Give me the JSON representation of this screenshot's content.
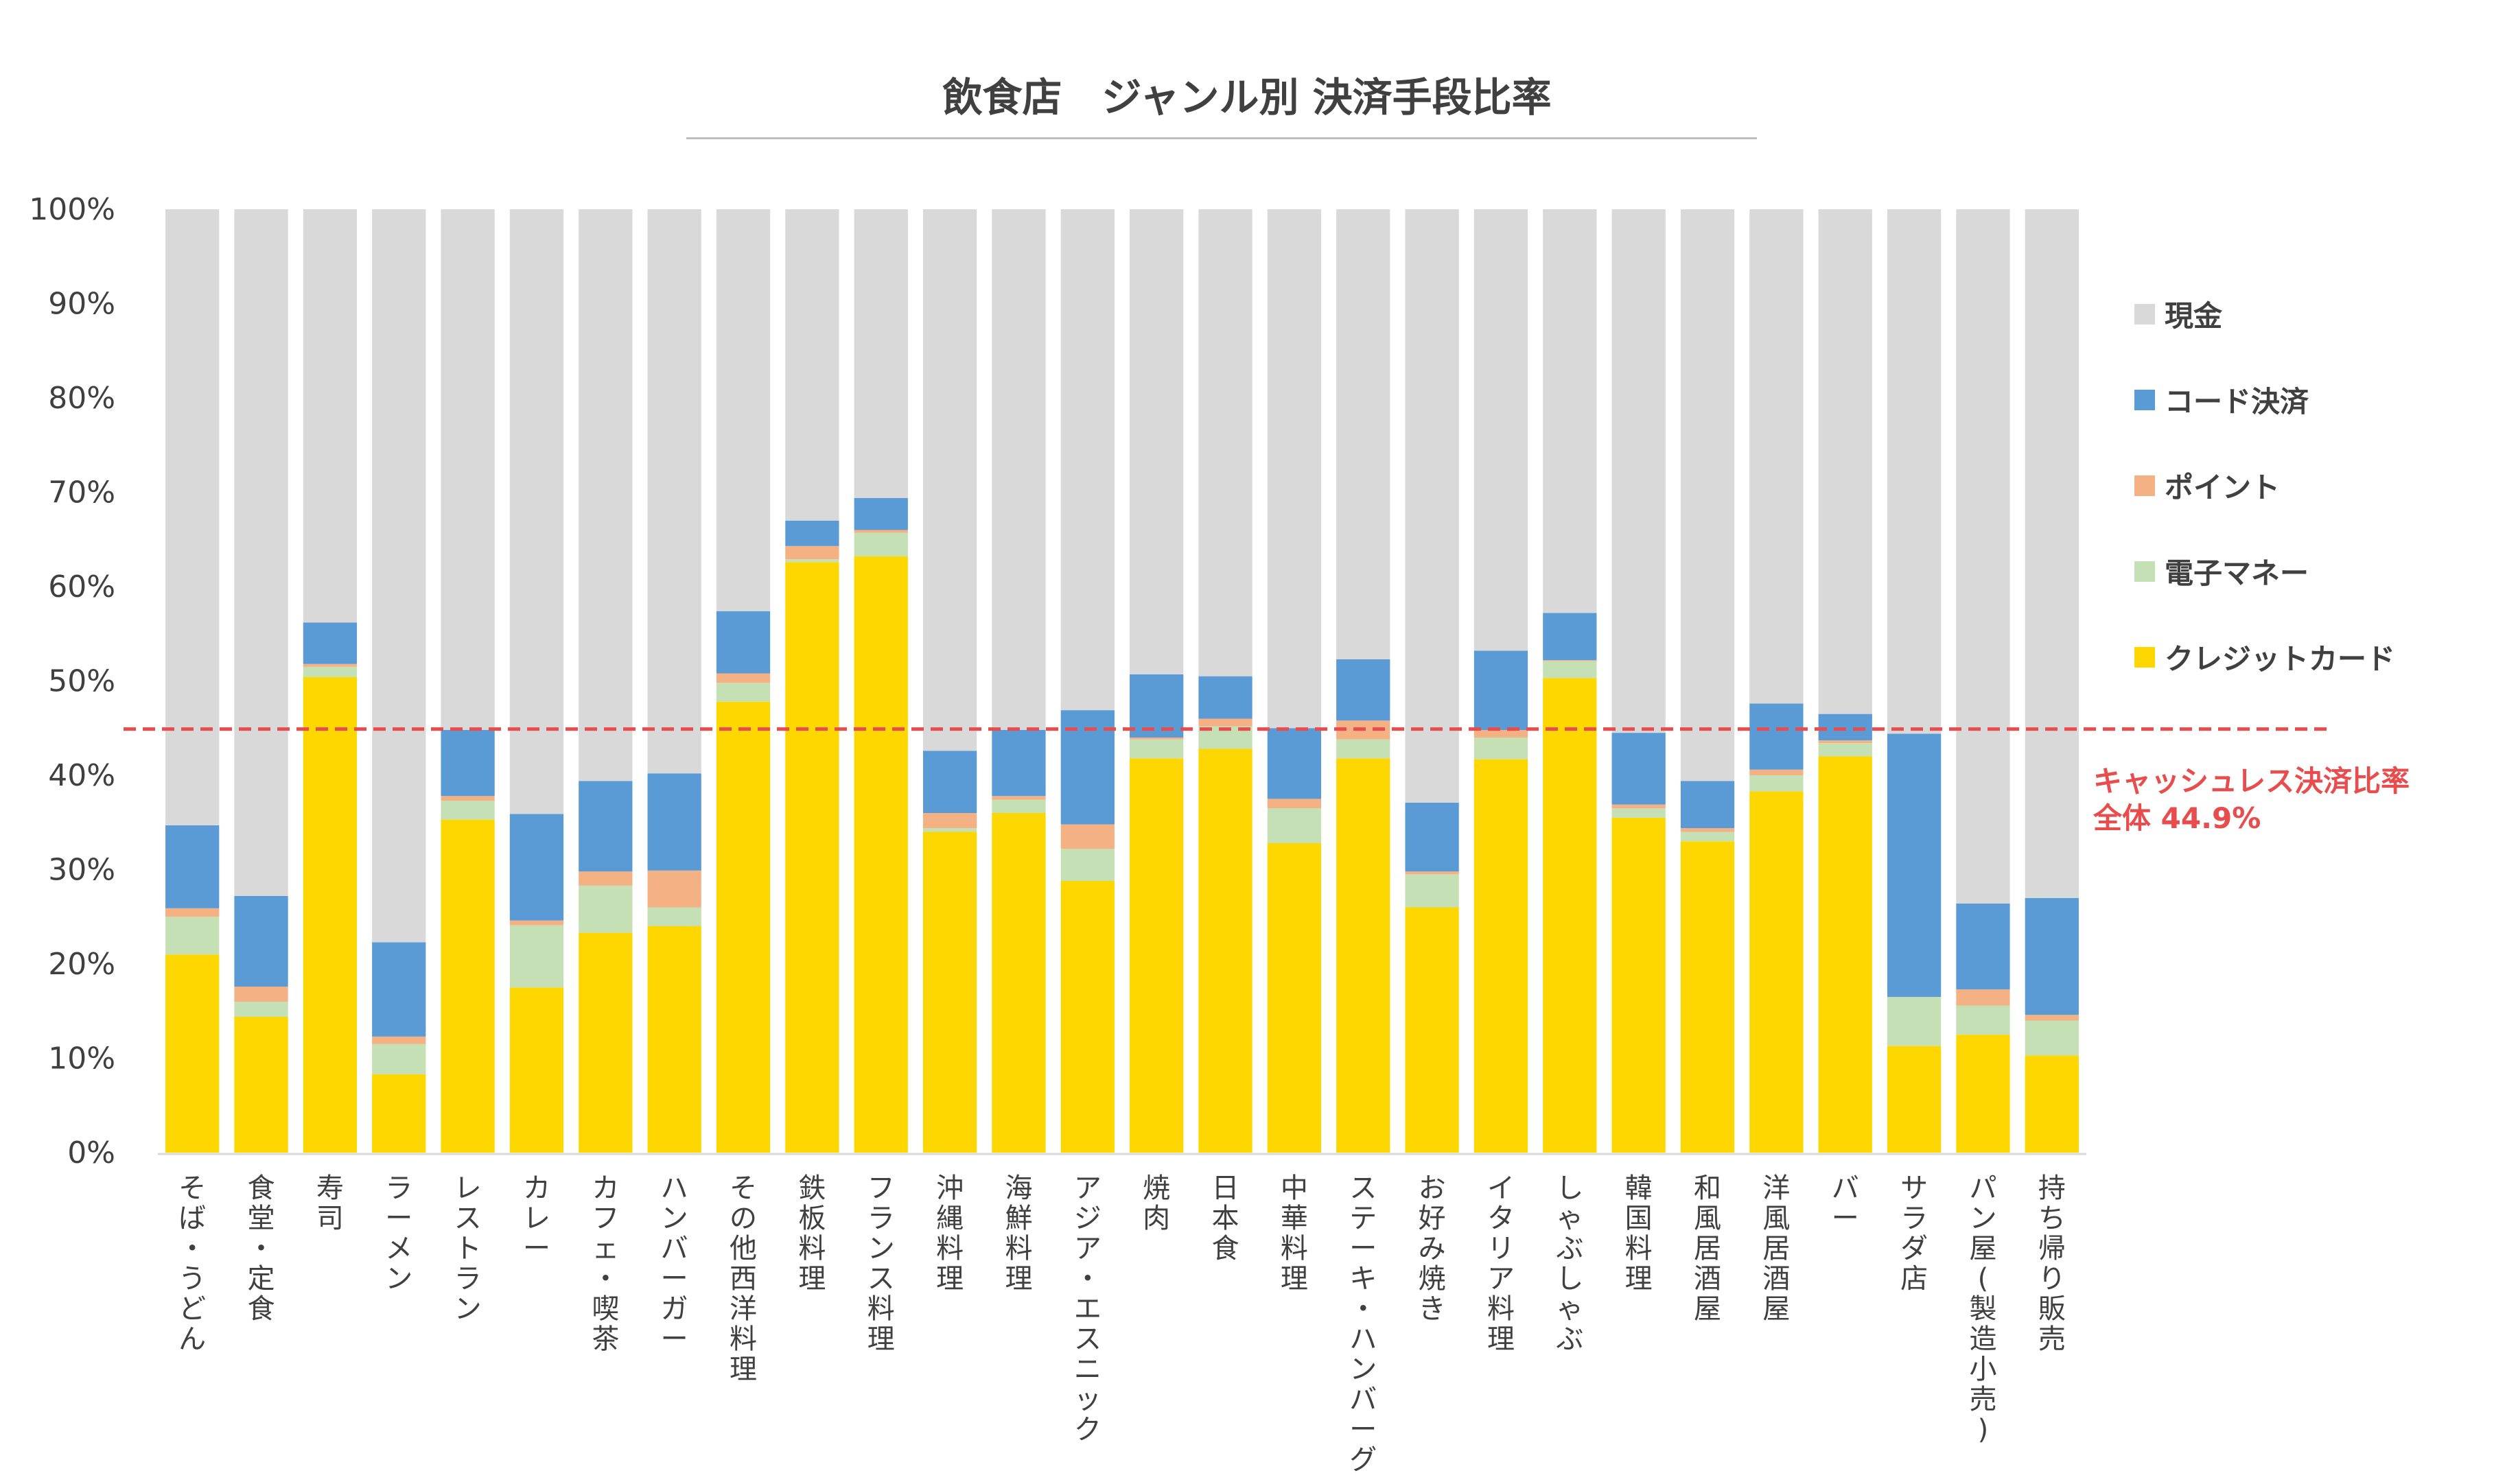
{
  "chart_data": {
    "type": "bar",
    "stacked": true,
    "title": "飲食店　ジャンル別 決済手段比率",
    "ylim": [
      0,
      100
    ],
    "yticks": [
      "0%",
      "10%",
      "20%",
      "30%",
      "40%",
      "50%",
      "60%",
      "70%",
      "80%",
      "90%",
      "100%"
    ],
    "categories": [
      "そば・うどん",
      "食堂・定食",
      "寿司",
      "ラーメン",
      "レストラン",
      "カレー",
      "カフェ・喫茶",
      "ハンバーガー",
      "その他西洋料理",
      "鉄板料理",
      "フランス料理",
      "沖縄料理",
      "海鮮料理",
      "アジア・エスニック",
      "焼肉",
      "日本食",
      "中華料理",
      "ステーキ・ハンバーグ",
      "お好み焼き",
      "イタリア料理",
      "しゃぶしゃぶ",
      "韓国料理",
      "和風居酒屋",
      "洋風居酒屋",
      "バー",
      "サラダ店",
      "パン屋(製造小売)",
      "持ち帰り販売"
    ],
    "series": [
      {
        "name": "クレジットカード",
        "color": "#ffd700",
        "values": [
          21,
          14.4,
          50.4,
          8.3,
          35.3,
          17.5,
          23.3,
          24.0,
          47.8,
          62.6,
          63.2,
          34.0,
          36.0,
          28.8,
          41.8,
          42.8,
          32.8,
          41.8,
          26.0,
          41.7,
          50.3,
          35.5,
          33.0,
          38.3,
          42.0,
          11.3,
          12.5,
          10.3
        ]
      },
      {
        "name": "電子マネー",
        "color": "#c5e0b4",
        "values": [
          4.0,
          1.6,
          1.1,
          3.2,
          2.0,
          6.6,
          5.0,
          2.0,
          2.0,
          0.3,
          2.5,
          0.4,
          1.4,
          3.4,
          2.0,
          2.4,
          3.7,
          2.0,
          3.5,
          2.3,
          1.8,
          1.0,
          1.0,
          1.7,
          1.4,
          5.2,
          3.1,
          3.7
        ]
      },
      {
        "name": "ポイント",
        "color": "#f4b183",
        "values": [
          0.9,
          1.6,
          0.3,
          0.8,
          0.5,
          0.5,
          1.5,
          3.9,
          1.0,
          1.4,
          0.3,
          1.6,
          0.4,
          2.6,
          0.2,
          0.8,
          1.0,
          2.0,
          0.3,
          0.8,
          0.1,
          0.4,
          0.4,
          0.6,
          0.3,
          0,
          1.7,
          0.6
        ]
      },
      {
        "name": "コード決済",
        "color": "#5b9bd5",
        "values": [
          8.8,
          9.6,
          4.4,
          10.0,
          7.0,
          11.3,
          9.6,
          10.3,
          6.6,
          2.7,
          3.4,
          6.6,
          7.0,
          12.1,
          6.7,
          4.5,
          7.5,
          6.5,
          7.3,
          8.4,
          5.0,
          7.6,
          5.0,
          7.0,
          2.8,
          27.9,
          9.1,
          12.4
        ]
      },
      {
        "name": "現金",
        "color": "#d9d9d9",
        "values": [
          65.3,
          72.8,
          43.8,
          77.7,
          55.2,
          64.1,
          60.6,
          59.8,
          42.6,
          33.0,
          30.6,
          57.4,
          55.2,
          53.1,
          49.3,
          49.5,
          55.0,
          47.7,
          62.9,
          46.8,
          42.8,
          55.5,
          60.6,
          52.4,
          53.5,
          55.6,
          73.6,
          73.0
        ]
      }
    ],
    "legend_order": [
      "現金",
      "コード決済",
      "ポイント",
      "電子マネー",
      "クレジットカード"
    ],
    "legend_position": "right",
    "reference_line": {
      "value": 44.9,
      "color": "#e84c4c",
      "label_line1": "キャッシュレス決済比率",
      "label_line2": "全体 44.9%"
    }
  }
}
